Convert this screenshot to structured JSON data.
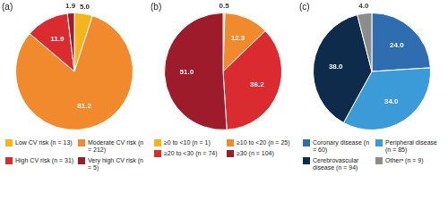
{
  "chart_data": [
    {
      "type": "pie",
      "title": "(a)",
      "categories": [
        "Low CV risk (n = 13)",
        "Moderate CV risk (n = 212)",
        "High CV risk (n = 31)",
        "Very high CV risk (n = 5)"
      ],
      "values": [
        5.0,
        81.2,
        11.9,
        1.9
      ],
      "value_labels": [
        "5.0",
        "81.2",
        "11.9",
        "1.9"
      ],
      "colors": [
        "#f6b41c",
        "#f08a2c",
        "#da2b30",
        "#9e1b2c"
      ],
      "data_labels": true,
      "legend": "bottom"
    },
    {
      "type": "pie",
      "title": "(b)",
      "categories": [
        "≥0 to <10 (n = 1)",
        "≥10 to <20 (n = 25)",
        "≥20 to <30 (n = 74)",
        "≥30 (n = 104)"
      ],
      "values": [
        0.5,
        12.3,
        36.2,
        51.0
      ],
      "value_labels": [
        "0.5",
        "12.3",
        "36.2",
        "51.0"
      ],
      "colors": [
        "#f6b41c",
        "#f08a2c",
        "#da2b30",
        "#9e1b2c"
      ],
      "data_labels": true,
      "legend": "bottom"
    },
    {
      "type": "pie",
      "title": "(c)",
      "categories": [
        "Coronary disease (n = 60)",
        "Peripheral disease (n = 85)",
        "Cerebrovascular disease (n = 94)",
        "Otherᵃ (n = 9)"
      ],
      "values": [
        24.0,
        34.0,
        38.0,
        4.0
      ],
      "value_labels": [
        "24.0",
        "34.0",
        "38.0",
        "4.0"
      ],
      "colors": [
        "#2d6db0",
        "#3b9bd8",
        "#0e2b4c",
        "#8c8c8c"
      ],
      "data_labels": true,
      "legend": "bottom"
    }
  ]
}
